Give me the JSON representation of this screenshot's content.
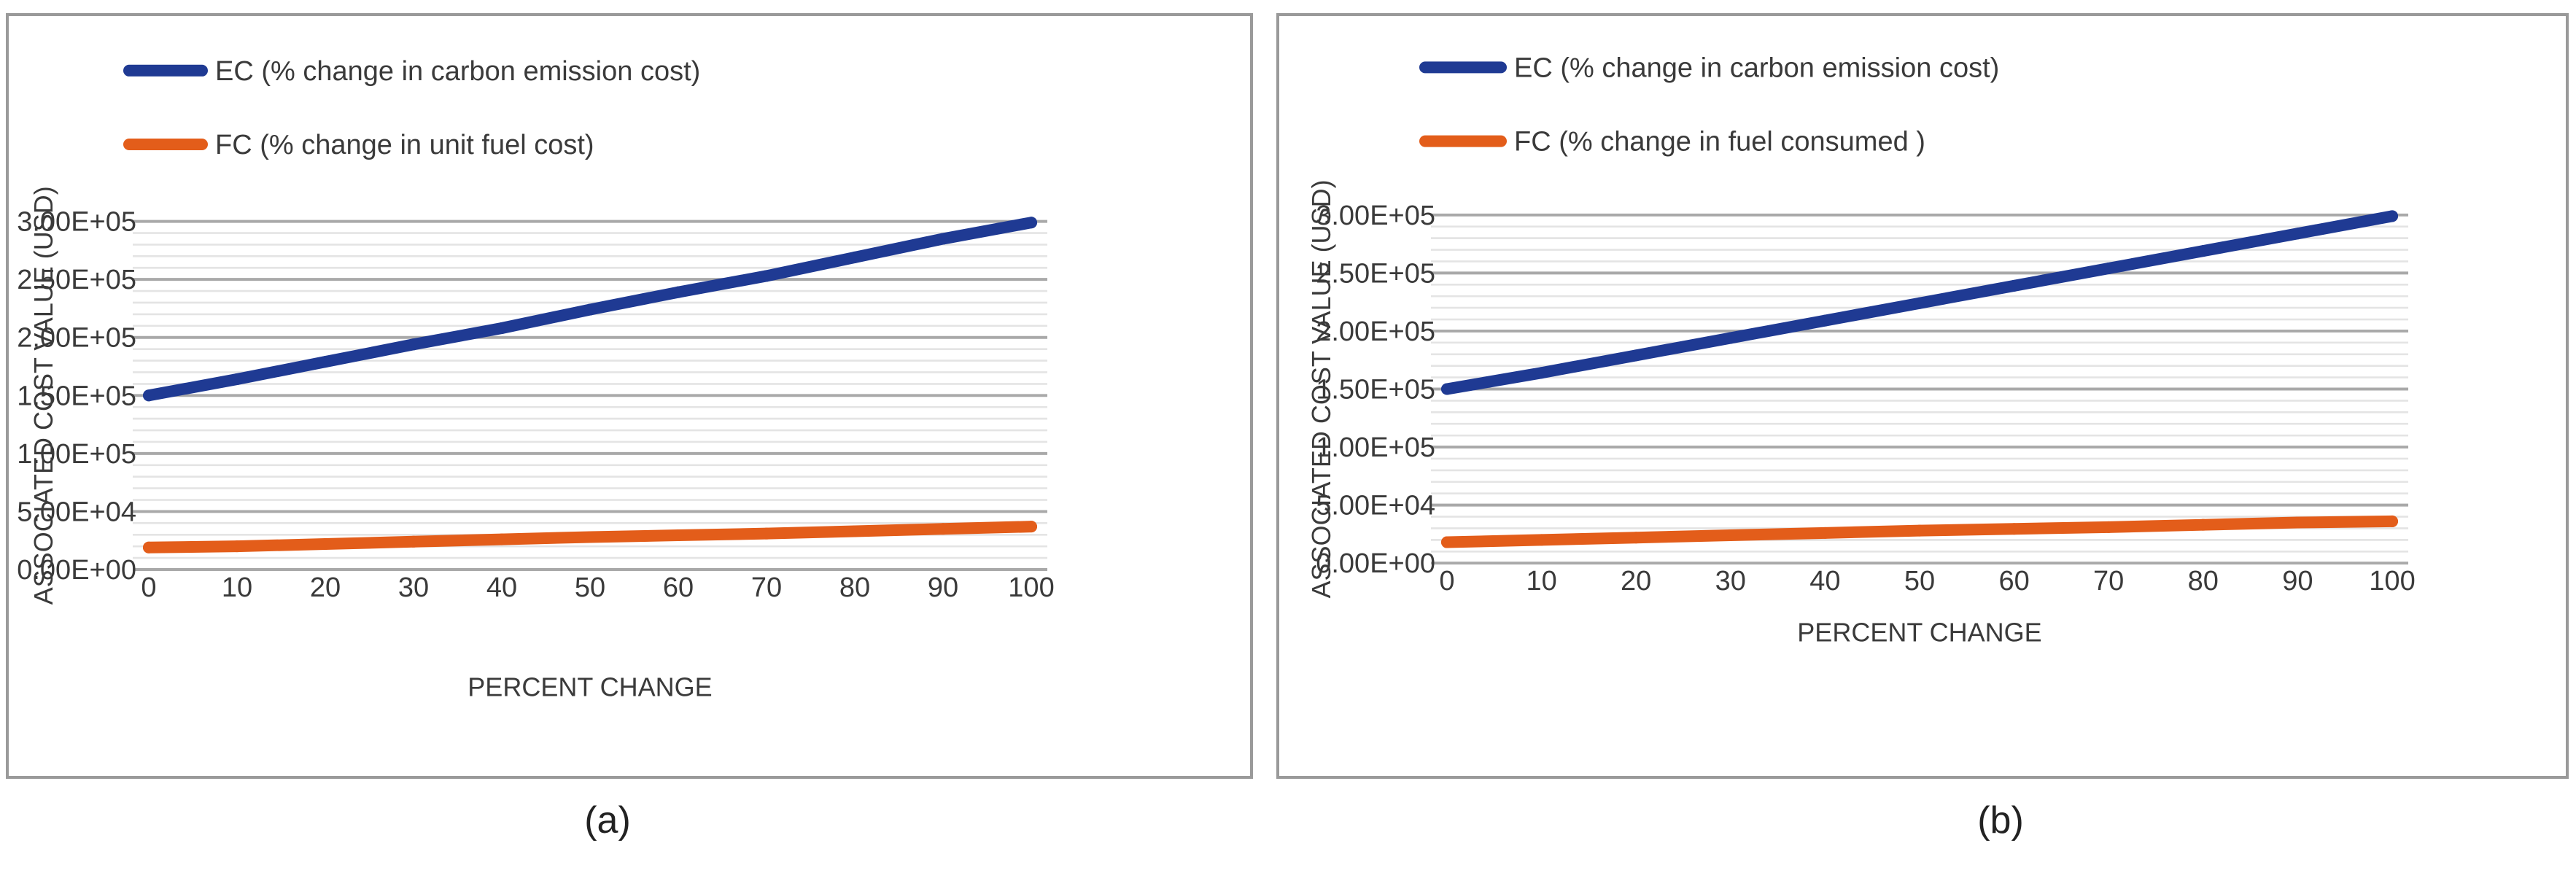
{
  "colors": {
    "ec": "#1f3a93",
    "fc": "#e35d1a",
    "grid_major": "#a9a9a9",
    "grid_minor": "#e4e4e4"
  },
  "chart_data": [
    {
      "type": "line",
      "caption": "(a)",
      "xlabel": "PERCENT CHANGE",
      "ylabel": "ASSOCIATED COST VALUE (USD)",
      "ylim": [
        0,
        300000
      ],
      "yticks": [
        0,
        50000,
        100000,
        150000,
        200000,
        250000,
        300000
      ],
      "ytick_labels": [
        "0.00E+00",
        "5.00E+04",
        "1.00E+05",
        "1.50E+05",
        "2.00E+05",
        "2.50E+05",
        "3.00E+05"
      ],
      "x": [
        0,
        10,
        20,
        30,
        40,
        50,
        60,
        70,
        80,
        90,
        100
      ],
      "xtick_labels": [
        "0",
        "10",
        "20",
        "30",
        "40",
        "50",
        "60",
        "70",
        "80",
        "90",
        "100"
      ],
      "legend_position": "top-left",
      "series": [
        {
          "name": "EC (% change in carbon emission cost)",
          "color_key": "ec",
          "values": [
            150000,
            164000,
            179000,
            194000,
            208000,
            224000,
            239000,
            253000,
            269000,
            285000,
            299000
          ]
        },
        {
          "name": "FC (% change in unit fuel cost)",
          "color_key": "fc",
          "values": [
            19000,
            20000,
            22000,
            24000,
            26000,
            28000,
            29500,
            31000,
            33000,
            35000,
            37000
          ]
        }
      ]
    },
    {
      "type": "line",
      "caption": "(b)",
      "xlabel": "PERCENT CHANGE",
      "ylabel": "ASSOCIATED COST VALUE (USD)",
      "ylim": [
        0,
        300000
      ],
      "yticks": [
        0,
        50000,
        100000,
        150000,
        200000,
        250000,
        300000
      ],
      "ytick_labels": [
        "0.00E+00",
        "5.00E+04",
        "1.00E+05",
        "1.50E+05",
        "2.00E+05",
        "2.50E+05",
        "3.00E+05"
      ],
      "x": [
        0,
        10,
        20,
        30,
        40,
        50,
        60,
        70,
        80,
        90,
        100
      ],
      "xtick_labels": [
        "0",
        "10",
        "20",
        "30",
        "40",
        "50",
        "60",
        "70",
        "80",
        "90",
        "100"
      ],
      "legend_position": "top-left",
      "series": [
        {
          "name": "EC (% change in carbon emission cost)",
          "color_key": "ec",
          "values": [
            150000,
            164000,
            179000,
            194000,
            209000,
            224000,
            239000,
            254000,
            269000,
            284000,
            299000
          ]
        },
        {
          "name": "FC (% change in fuel consumed )",
          "color_key": "fc",
          "values": [
            18000,
            20000,
            22000,
            24000,
            26000,
            28000,
            29500,
            31000,
            33000,
            35000,
            36000
          ]
        }
      ]
    }
  ]
}
